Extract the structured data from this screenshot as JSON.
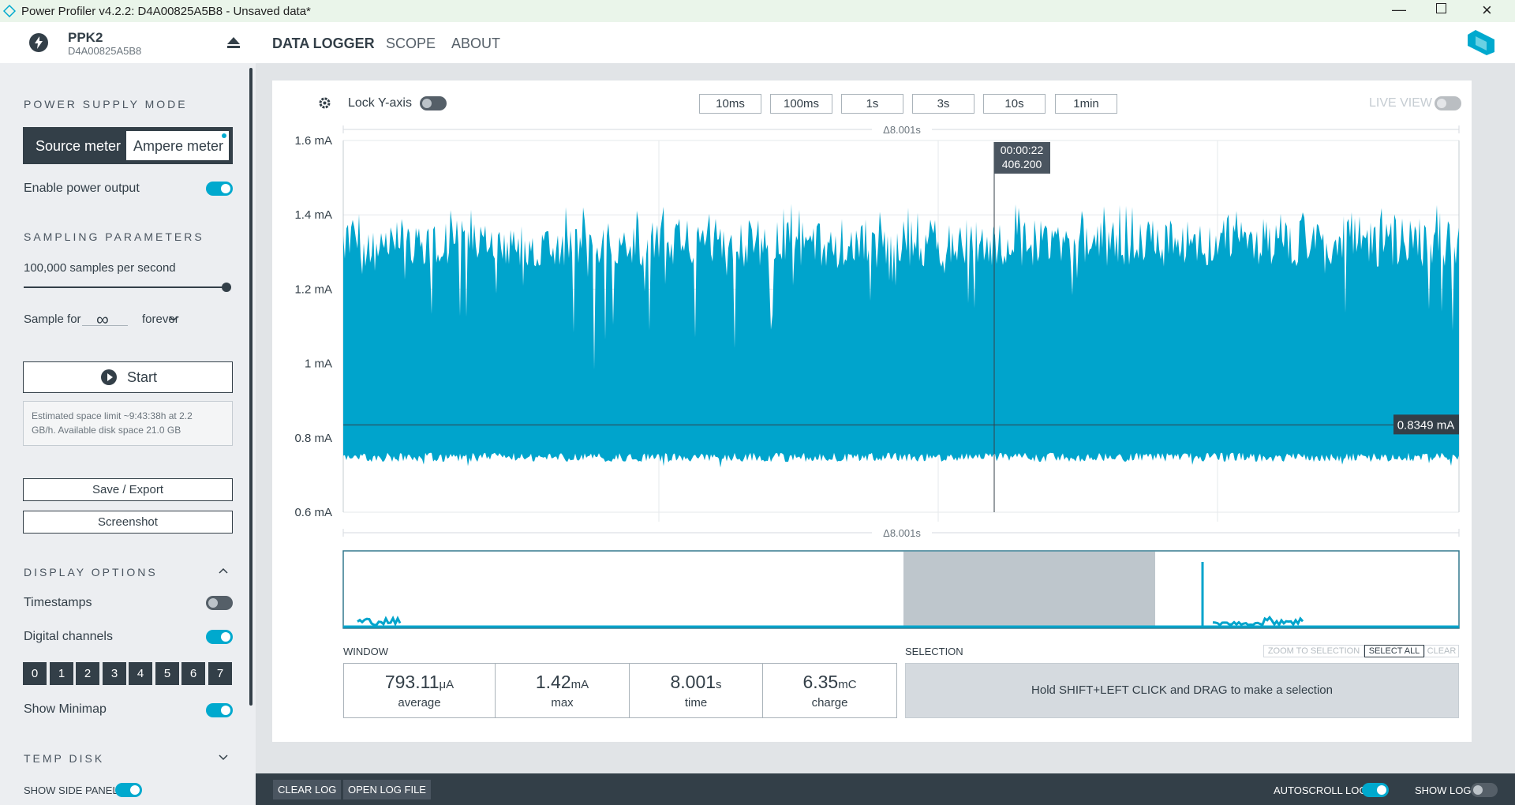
{
  "title_bar": {
    "title": "Power Profiler v4.2.2: D4A00825A5B8 - Unsaved data*"
  },
  "header": {
    "device_name": "PPK2",
    "device_serial": "D4A00825A5B8",
    "nav": [
      "DATA LOGGER",
      "SCOPE",
      "ABOUT"
    ]
  },
  "sidebar": {
    "power_supply_mode": {
      "heading": "POWER SUPPLY MODE",
      "options": [
        "Source meter",
        "Ampere meter"
      ],
      "enable_power_output": "Enable power output"
    },
    "sampling": {
      "heading": "SAMPLING PARAMETERS",
      "rate": "100,000 samples per second",
      "sample_for": "Sample for",
      "duration": "∞",
      "unit": "forever",
      "start": "Start",
      "estimate": "Estimated space limit ~9:43:38h at 2.2 GB/h. Available disk space 21.0 GB"
    },
    "actions": [
      "Save / Export",
      "Screenshot"
    ],
    "display_options": {
      "heading": "DISPLAY OPTIONS",
      "timestamps": "Timestamps",
      "digital_channels": "Digital channels",
      "channels": [
        "0",
        "1",
        "2",
        "3",
        "4",
        "5",
        "6",
        "7"
      ],
      "show_minimap": "Show Minimap"
    },
    "temp_disk": {
      "heading": "TEMP DISK"
    }
  },
  "toolbar": {
    "lock_y_axis": "Lock Y-axis",
    "time_windows": [
      "10ms",
      "100ms",
      "1s",
      "3s",
      "10s",
      "1min"
    ],
    "live_view": "LIVE VIEW"
  },
  "chart": {
    "window_span_top": "Δ8.001s",
    "window_span_bottom": "Δ8.001s",
    "ylim": [
      0.6,
      1.6
    ],
    "yticks": [
      {
        "value": 0.6,
        "label": "0.6 mA"
      },
      {
        "value": 0.8,
        "label": "0.8 mA"
      },
      {
        "value": 1,
        "label": "1 mA"
      },
      {
        "value": 1.2,
        "label": "1.2 mA"
      },
      {
        "value": 1.4,
        "label": "1.4 mA"
      },
      {
        "value": 1.6,
        "label": "1.6 mA"
      }
    ],
    "cursor": {
      "time": "00:00:22",
      "value": "406.200"
    },
    "level": {
      "value": 0.8349,
      "label": "0.8349 mA"
    }
  },
  "window_stats": {
    "heading": "WINDOW",
    "items": [
      {
        "value": "793.11",
        "unit": "μA",
        "label": "average"
      },
      {
        "value": "1.42",
        "unit": "mA",
        "label": "max"
      },
      {
        "value": "8.001",
        "unit": "s",
        "label": "time"
      },
      {
        "value": "6.35",
        "unit": "mC",
        "label": "charge"
      }
    ]
  },
  "selection": {
    "heading": "SELECTION",
    "buttons": [
      "ZOOM TO SELECTION",
      "SELECT ALL",
      "CLEAR"
    ],
    "hint": "Hold SHIFT+LEFT CLICK and DRAG to make a selection"
  },
  "bottom_bar": {
    "show_side_panel": "SHOW SIDE PANEL",
    "buttons": [
      "CLEAR LOG",
      "OPEN LOG FILE"
    ],
    "autoscroll_log": "AUTOSCROLL LOG",
    "show_log": "SHOW LOG"
  }
}
